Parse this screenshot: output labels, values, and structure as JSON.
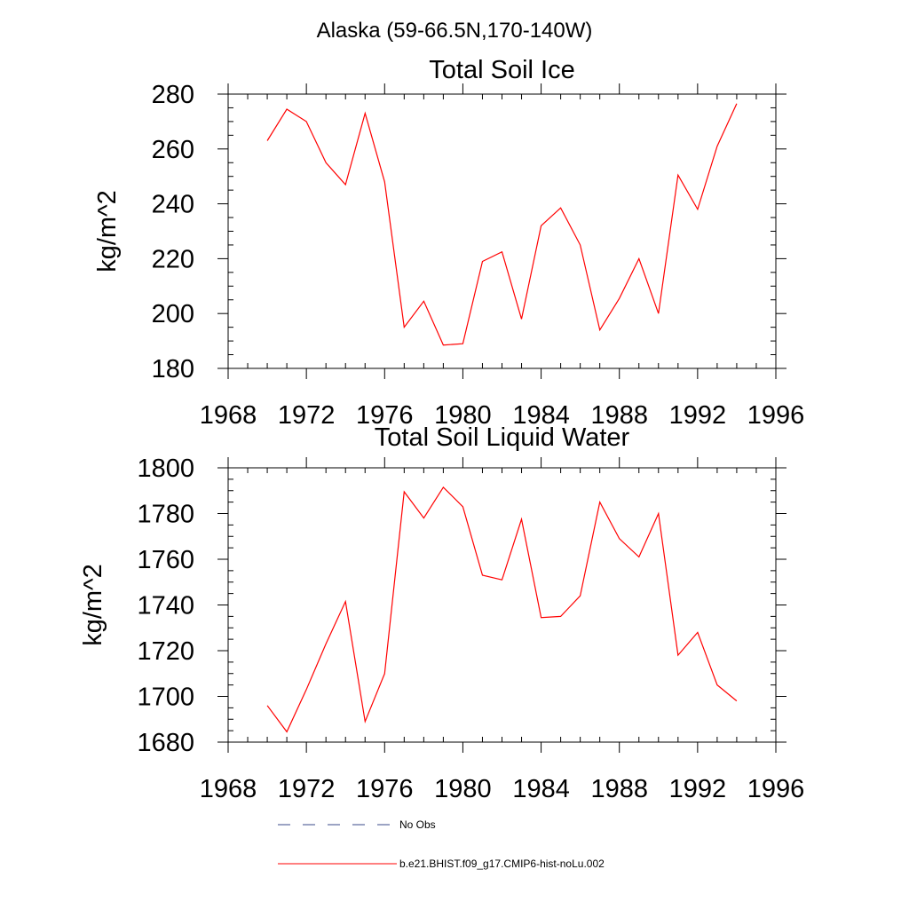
{
  "suptitle": "Alaska (59-66.5N,170-140W)",
  "chart_data": [
    {
      "type": "line",
      "title": "Total Soil Ice",
      "xlabel": "",
      "ylabel": "kg/m^2",
      "xlim": [
        1968,
        1996
      ],
      "ylim": [
        180,
        280
      ],
      "xticks": [
        1968,
        1972,
        1976,
        1980,
        1984,
        1988,
        1992,
        1996
      ],
      "yticks": [
        180,
        200,
        220,
        240,
        260,
        280
      ],
      "x_minor_step": 1,
      "y_minor_step": 5,
      "grid": false,
      "series": [
        {
          "name": "b.e21.BHIST.f09_g17.CMIP6-hist-noLu.002",
          "color": "#ff0000",
          "x": [
            1970,
            1971,
            1972,
            1973,
            1974,
            1975,
            1976,
            1977,
            1978,
            1979,
            1980,
            1981,
            1982,
            1983,
            1984,
            1985,
            1986,
            1987,
            1988,
            1989,
            1990,
            1991,
            1992,
            1993,
            1994
          ],
          "y": [
            263,
            274.5,
            270,
            255,
            247,
            273,
            248,
            195,
            204.5,
            188.5,
            189,
            219,
            222.5,
            198,
            232,
            238.5,
            225,
            194,
            205.5,
            220,
            200,
            250.5,
            238,
            261,
            276.5
          ]
        }
      ]
    },
    {
      "type": "line",
      "title": "Total Soil Liquid Water",
      "xlabel": "",
      "ylabel": "kg/m^2",
      "xlim": [
        1968,
        1996
      ],
      "ylim": [
        1680,
        1800
      ],
      "xticks": [
        1968,
        1972,
        1976,
        1980,
        1984,
        1988,
        1992,
        1996
      ],
      "yticks": [
        1680,
        1700,
        1720,
        1740,
        1760,
        1780,
        1800
      ],
      "x_minor_step": 1,
      "y_minor_step": 5,
      "grid": false,
      "series": [
        {
          "name": "b.e21.BHIST.f09_g17.CMIP6-hist-noLu.002",
          "color": "#ff0000",
          "x": [
            1970,
            1971,
            1972,
            1973,
            1974,
            1975,
            1976,
            1977,
            1978,
            1979,
            1980,
            1981,
            1982,
            1983,
            1984,
            1985,
            1986,
            1987,
            1988,
            1989,
            1990,
            1991,
            1992,
            1993,
            1994
          ],
          "y": [
            1696,
            1684.5,
            1703,
            1723,
            1741.5,
            1689,
            1710,
            1789.5,
            1778,
            1791.5,
            1783,
            1753,
            1751,
            1777.5,
            1734.5,
            1735,
            1744,
            1785,
            1769,
            1761,
            1780,
            1718,
            1728,
            1705,
            1698
          ]
        }
      ]
    }
  ],
  "legend": {
    "items": [
      {
        "label": "No Obs",
        "color": "#3a4a8a",
        "dash": "dashed"
      },
      {
        "label": "b.e21.BHIST.f09_g17.CMIP6-hist-noLu.002",
        "color": "#ff0000",
        "dash": "solid"
      }
    ]
  }
}
